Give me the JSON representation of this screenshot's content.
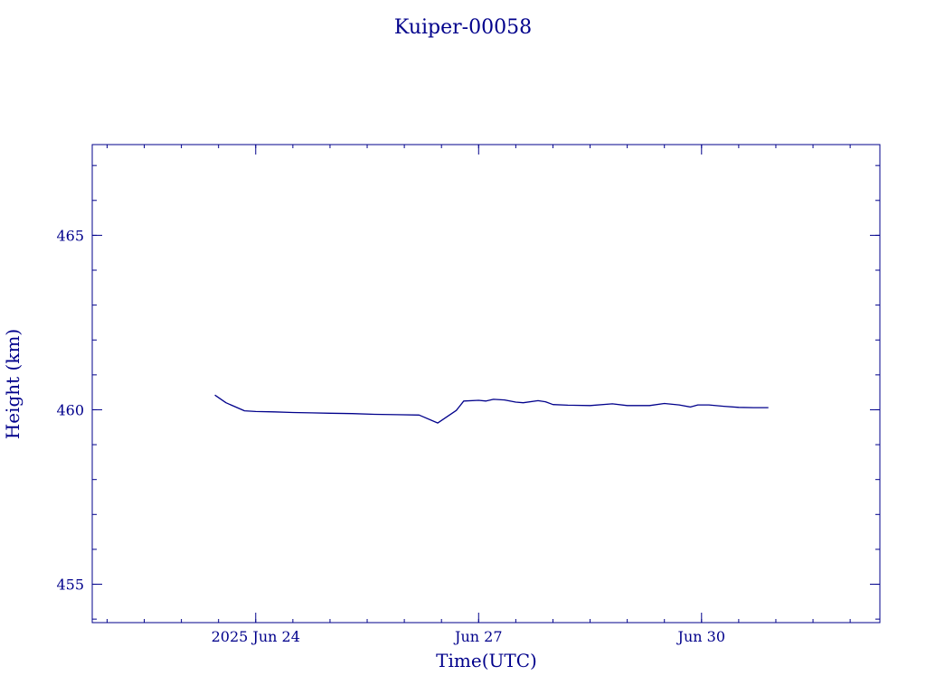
{
  "chart_data": {
    "type": "line",
    "title": "Kuiper-00058",
    "xlabel": "Time(UTC)",
    "ylabel": "Height (km)",
    "x_unit": "day",
    "xlim": [
      21.8,
      32.4
    ],
    "ylim": [
      453.9,
      467.6
    ],
    "grid": false,
    "x_ticks": [
      {
        "value": 24,
        "label": "2025 Jun 24"
      },
      {
        "value": 27,
        "label": "Jun 27"
      },
      {
        "value": 30,
        "label": "Jun 30"
      }
    ],
    "x_minor_step": 0.5,
    "y_ticks": [
      {
        "value": 455,
        "label": "455"
      },
      {
        "value": 460,
        "label": "460"
      },
      {
        "value": 465,
        "label": "465"
      }
    ],
    "y_minor_step": 1,
    "series": [
      {
        "x": [
          23.45,
          23.6,
          23.85,
          24.0,
          24.25,
          24.5,
          24.75,
          25.0,
          25.3,
          25.6,
          25.9,
          26.2,
          26.45,
          26.7,
          26.8,
          27.0,
          27.1,
          27.2,
          27.35,
          27.5,
          27.6,
          27.8,
          27.9,
          28.0,
          28.2,
          28.5,
          28.8,
          29.0,
          29.3,
          29.5,
          29.7,
          29.85,
          29.95,
          30.1,
          30.3,
          30.5,
          30.7,
          30.9
        ],
        "y": [
          460.42,
          460.2,
          459.97,
          459.95,
          459.94,
          459.92,
          459.91,
          459.9,
          459.89,
          459.87,
          459.86,
          459.85,
          459.62,
          459.98,
          460.25,
          460.27,
          460.25,
          460.3,
          460.28,
          460.22,
          460.2,
          460.26,
          460.23,
          460.15,
          460.13,
          460.12,
          460.17,
          460.12,
          460.12,
          460.18,
          460.14,
          460.08,
          460.14,
          460.14,
          460.1,
          460.07,
          460.06,
          460.06
        ]
      }
    ]
  }
}
